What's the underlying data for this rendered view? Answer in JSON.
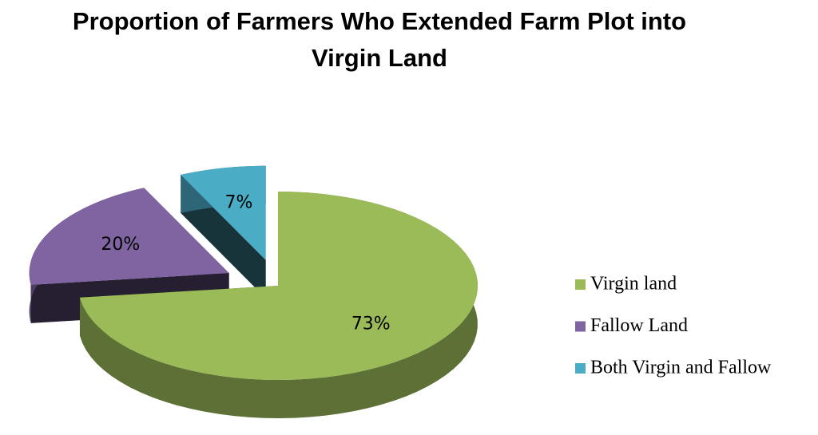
{
  "chart_data": {
    "type": "pie",
    "title": "Proportion of Farmers Who Extended Farm Plot into Virgin Land",
    "categories": [
      "Virgin land",
      "Fallow Land",
      "Both Virgin and Fallow"
    ],
    "values": [
      73,
      20,
      7
    ],
    "value_labels": [
      "73%",
      "20%",
      "7%"
    ],
    "colors": [
      "#9bbb59",
      "#8064a2",
      "#4bacc6"
    ],
    "legend": "right"
  }
}
